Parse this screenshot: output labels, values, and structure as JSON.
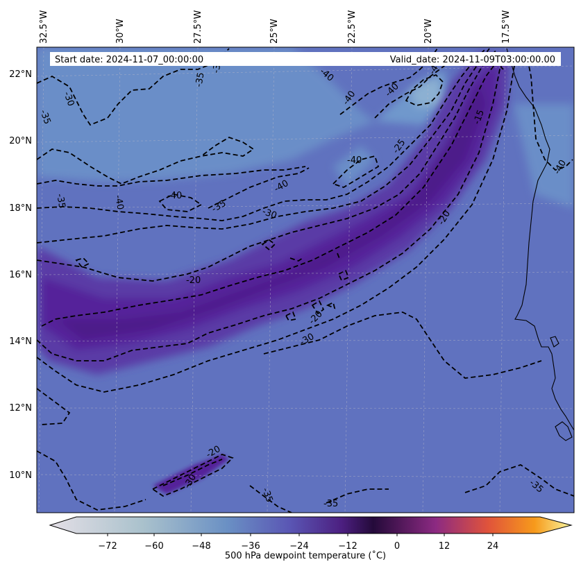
{
  "header": {
    "start_date": "Start date: 2024-11-07_00:00:00",
    "valid_date": "Valid_date: 2024-11-09T03:00:00.00"
  },
  "longitude_labels": [
    "32.5°W",
    "30°W",
    "27.5°W",
    "25°W",
    "22.5°W",
    "20°W",
    "17.5°W"
  ],
  "latitude_labels": [
    "22°N",
    "20°N",
    "18°N",
    "16°N",
    "14°N",
    "12°N",
    "10°N"
  ],
  "contour_labels": [
    "-30",
    "-35",
    "-35",
    "-30",
    "-35",
    "-40",
    "-40",
    "-40",
    "-40",
    "-40",
    "-40",
    "-35",
    "-40",
    "-40",
    "-30",
    "-25",
    "-15",
    "-20",
    "-20",
    "-20",
    "-30",
    "-20",
    "-30",
    "-35",
    "-35",
    "-40"
  ],
  "colorbar": {
    "label": "500 hPa dewpoint temperature ($^\\circ$C)",
    "ticks": [
      "−72",
      "−60",
      "−48",
      "−36",
      "−24",
      "−12",
      "0",
      "12",
      "24"
    ],
    "colors": {
      "low": "#e4dfe6",
      "light": "#a9c1cc",
      "blue": "#6a90c4",
      "indigo": "#5a56b4",
      "purple": "#4c1f80",
      "dark": "#240a3a",
      "magenta": "#8c2a82",
      "red": "#e0533b",
      "orange": "#f79a1b",
      "high": "#f8f6a0"
    }
  },
  "map": {
    "background_color": "#6072bf",
    "moist_band_color": "#55249a"
  }
}
